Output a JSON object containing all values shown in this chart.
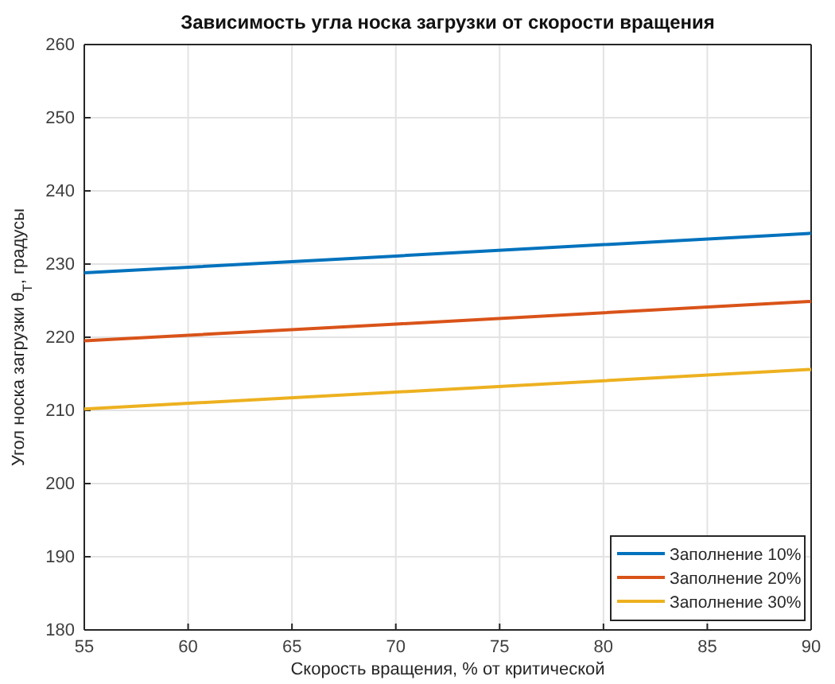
{
  "chart_data": {
    "type": "line",
    "title": "Зависимость угла носка загрузки от скорости вращения",
    "xlabel": "Скорость вращения, % от критической",
    "ylabel": "Угол носка загрузки θ$_{T}$, градусы",
    "x": [
      55,
      70,
      90
    ],
    "series": [
      {
        "name": "Заполнение 10%",
        "color": "#0072bd",
        "values": [
          228.8,
          231.1,
          234.2
        ]
      },
      {
        "name": "Заполнение 20%",
        "color": "#d95319",
        "values": [
          219.5,
          221.8,
          224.9
        ]
      },
      {
        "name": "Заполнение 30%",
        "color": "#edb120",
        "values": [
          210.2,
          212.5,
          215.6
        ]
      }
    ],
    "xlim": [
      55,
      90
    ],
    "xticks": [
      55,
      60,
      65,
      70,
      75,
      80,
      85,
      90
    ],
    "ylim": [
      180,
      260
    ],
    "yticks": [
      180,
      190,
      200,
      210,
      220,
      230,
      240,
      250,
      260
    ],
    "grid": true,
    "legend": "bottom right",
    "marker": "none",
    "line_style": "solid"
  }
}
